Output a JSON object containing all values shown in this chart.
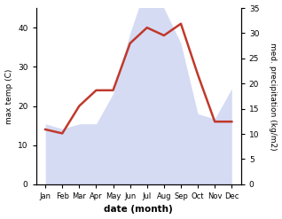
{
  "months": [
    "Jan",
    "Feb",
    "Mar",
    "Apr",
    "May",
    "Jun",
    "Jul",
    "Aug",
    "Sep",
    "Oct",
    "Nov",
    "Dec"
  ],
  "temp": [
    14,
    13,
    20,
    24,
    24,
    36,
    40,
    38,
    41,
    28,
    16,
    16
  ],
  "precip": [
    12,
    11,
    12,
    12,
    18,
    30,
    40,
    35,
    28,
    14,
    13,
    19
  ],
  "temp_color": "#c0392b",
  "precip_color": "#c5cdf0",
  "precip_alpha": 0.7,
  "xlabel": "date (month)",
  "ylabel_left": "max temp (C)",
  "ylabel_right": "med. precipitation (kg/m2)",
  "ylim_left": [
    0,
    45
  ],
  "ylim_right": [
    0,
    35
  ],
  "yticks_left": [
    0,
    10,
    20,
    30,
    40
  ],
  "yticks_right": [
    0,
    5,
    10,
    15,
    20,
    25,
    30,
    35
  ],
  "temp_linewidth": 1.8,
  "bg_color": "#ffffff"
}
